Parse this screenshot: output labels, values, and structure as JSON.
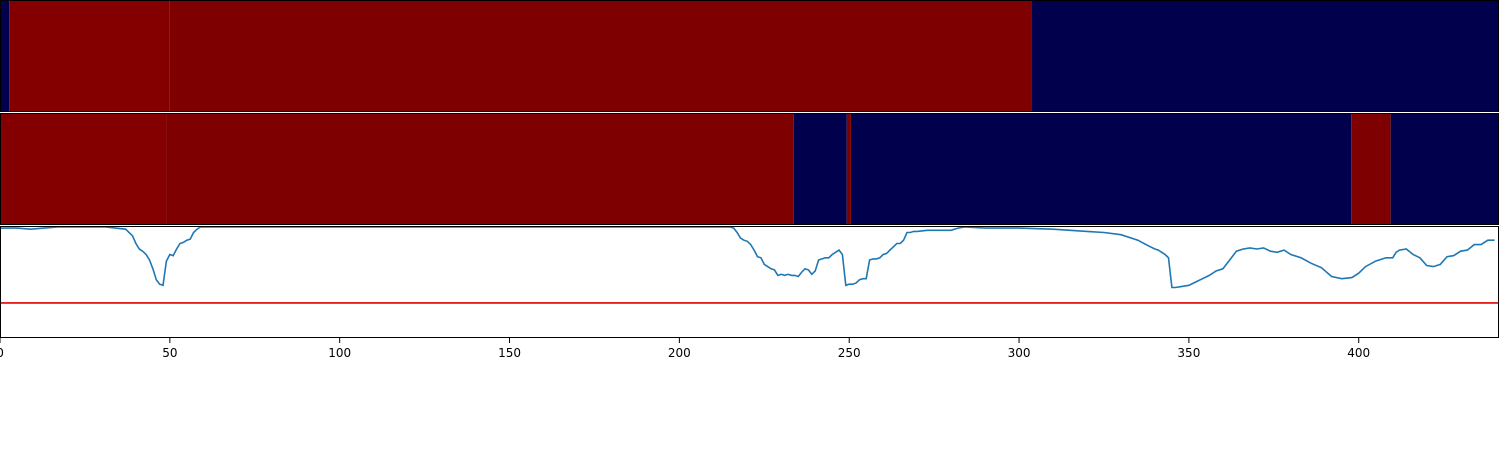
{
  "chart_data": [
    {
      "type": "heatmap",
      "title": "",
      "xlim": [
        0,
        441
      ],
      "segments": [
        {
          "start": 0,
          "end": 2.7,
          "level": "low"
        },
        {
          "start": 2.7,
          "end": 50,
          "level": "high-bright"
        },
        {
          "start": 50,
          "end": 303.6,
          "level": "high"
        },
        {
          "start": 303.6,
          "end": 441,
          "level": "low"
        }
      ]
    },
    {
      "type": "heatmap",
      "title": "",
      "xlim": [
        0,
        441
      ],
      "segments": [
        {
          "start": 0,
          "end": 49,
          "level": "high-bright"
        },
        {
          "start": 49,
          "end": 233.7,
          "level": "high"
        },
        {
          "start": 233.7,
          "end": 249.3,
          "level": "low"
        },
        {
          "start": 249.3,
          "end": 250.5,
          "level": "high"
        },
        {
          "start": 250.5,
          "end": 397.8,
          "level": "low"
        },
        {
          "start": 397.8,
          "end": 409.4,
          "level": "high"
        },
        {
          "start": 409.4,
          "end": 441,
          "level": "low"
        }
      ]
    },
    {
      "type": "line",
      "title": "",
      "xlabel": "",
      "ylabel": "",
      "xlim": [
        0,
        441
      ],
      "ylim": [
        0,
        1
      ],
      "xticks": [
        0,
        50,
        100,
        150,
        200,
        250,
        300,
        350,
        400
      ],
      "threshold": 0.31,
      "series": [
        {
          "x": [
            0,
            5,
            9,
            13,
            17,
            22,
            27,
            31,
            34,
            37,
            39,
            40,
            41,
            42,
            43,
            44,
            45,
            46,
            47,
            48,
            49,
            50,
            51,
            52,
            53,
            54,
            55,
            56,
            57,
            58,
            59,
            60,
            65,
            80,
            100,
            120,
            140,
            160,
            180,
            200,
            210,
            215,
            216,
            217,
            218,
            219,
            220,
            221,
            222,
            223,
            224,
            225,
            226,
            227,
            228,
            229,
            230,
            231,
            232,
            233,
            234,
            235,
            236,
            237,
            238,
            239,
            240,
            241,
            242,
            243,
            244,
            245,
            246,
            247,
            248,
            249,
            250,
            251,
            252,
            253,
            254,
            255,
            256,
            257,
            258,
            259,
            260,
            261,
            262,
            263,
            264,
            265,
            266,
            267,
            268,
            269,
            270,
            273,
            276,
            280,
            282,
            284,
            290,
            300,
            310,
            315,
            320,
            325,
            330,
            335,
            338,
            340,
            341,
            342,
            343,
            344,
            345,
            346,
            348,
            350,
            352,
            354,
            356,
            358,
            360,
            362,
            364,
            366,
            368,
            370,
            372,
            374,
            376,
            378,
            380,
            383,
            386,
            389,
            392,
            395,
            398,
            400,
            402,
            405,
            408,
            410,
            411,
            412,
            414,
            416,
            418,
            420,
            422,
            424,
            426,
            428,
            430,
            432,
            434,
            436,
            438,
            440
          ],
          "values": [
            0.99,
            0.99,
            0.98,
            0.99,
            1.0,
            1.0,
            1.0,
            1.0,
            0.99,
            0.98,
            0.92,
            0.85,
            0.8,
            0.78,
            0.75,
            0.7,
            0.62,
            0.52,
            0.48,
            0.47,
            0.69,
            0.75,
            0.74,
            0.8,
            0.85,
            0.86,
            0.88,
            0.89,
            0.95,
            0.98,
            1.0,
            1.0,
            1.0,
            1.0,
            1.0,
            1.0,
            1.0,
            1.0,
            1.0,
            1.0,
            1.0,
            1.0,
            0.99,
            0.95,
            0.9,
            0.88,
            0.87,
            0.84,
            0.79,
            0.73,
            0.72,
            0.66,
            0.64,
            0.62,
            0.61,
            0.56,
            0.57,
            0.56,
            0.57,
            0.56,
            0.56,
            0.55,
            0.59,
            0.62,
            0.61,
            0.57,
            0.6,
            0.7,
            0.71,
            0.72,
            0.72,
            0.75,
            0.77,
            0.79,
            0.75,
            0.47,
            0.48,
            0.48,
            0.49,
            0.52,
            0.53,
            0.53,
            0.7,
            0.71,
            0.71,
            0.72,
            0.75,
            0.76,
            0.79,
            0.82,
            0.85,
            0.85,
            0.88,
            0.95,
            0.95,
            0.96,
            0.96,
            0.97,
            0.97,
            0.97,
            0.99,
            1.0,
            0.99,
            0.99,
            0.98,
            0.97,
            0.96,
            0.95,
            0.93,
            0.88,
            0.83,
            0.8,
            0.79,
            0.77,
            0.75,
            0.72,
            0.45,
            0.45,
            0.46,
            0.47,
            0.5,
            0.53,
            0.56,
            0.6,
            0.62,
            0.7,
            0.78,
            0.8,
            0.81,
            0.8,
            0.81,
            0.78,
            0.77,
            0.79,
            0.75,
            0.72,
            0.67,
            0.63,
            0.55,
            0.53,
            0.54,
            0.58,
            0.64,
            0.69,
            0.72,
            0.72,
            0.77,
            0.79,
            0.8,
            0.75,
            0.72,
            0.65,
            0.64,
            0.66,
            0.73,
            0.74,
            0.78,
            0.79,
            0.84,
            0.84,
            0.88,
            0.88
          ]
        }
      ]
    }
  ],
  "colors": {
    "low": "#00004c",
    "high": "#7f0000",
    "high-bright": "#840000",
    "line": "#1f77b4",
    "threshold": "#e00000"
  }
}
